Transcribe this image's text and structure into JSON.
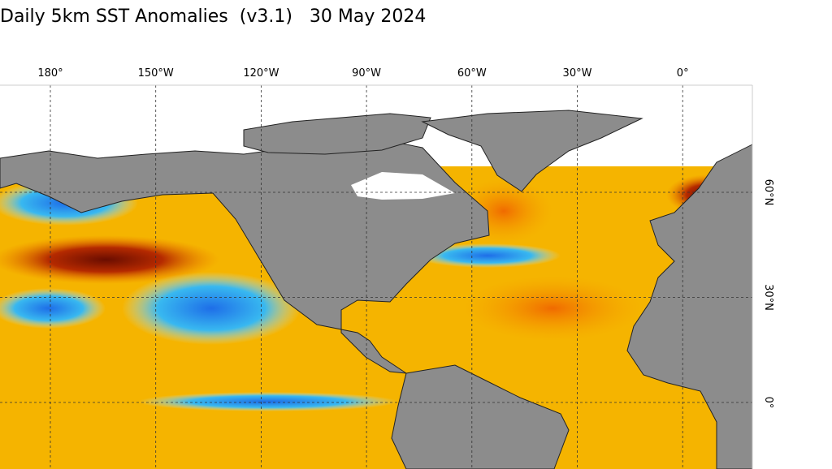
{
  "header": {
    "title": "Daily 5km SST Anomalies  (v3.1)   30 May 2024"
  },
  "map": {
    "longitude_labels": [
      "180°",
      "150°W",
      "120°W",
      "90°W",
      "60°W",
      "30°W",
      "0°"
    ],
    "latitude_labels": [
      "60°N",
      "30°N",
      "0°"
    ]
  }
}
